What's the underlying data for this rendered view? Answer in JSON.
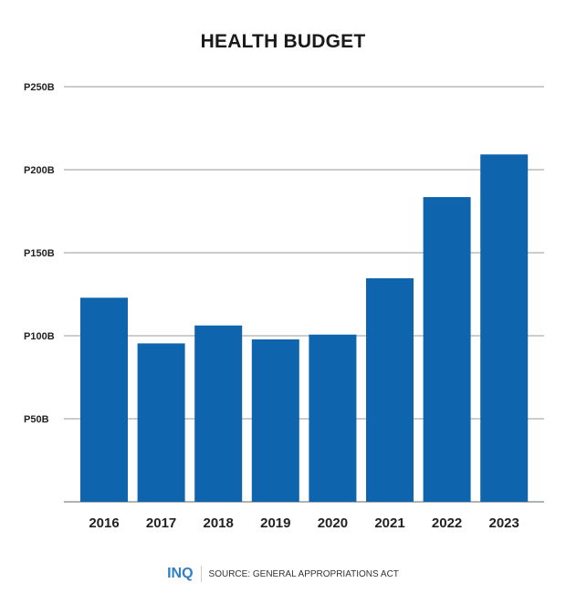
{
  "chart_data": {
    "type": "bar",
    "title": "HEALTH BUDGET",
    "categories": [
      "2016",
      "2017",
      "2018",
      "2019",
      "2020",
      "2021",
      "2022",
      "2023"
    ],
    "values": [
      122.9,
      95.4,
      106.2,
      97.8,
      100.7,
      134.6,
      183.5,
      209.2
    ],
    "unit": "billion pesos",
    "ylim": [
      0,
      250
    ],
    "yticks": [
      50,
      100,
      150,
      200,
      250
    ],
    "ytick_labels": [
      "P50B",
      "P100B",
      "P150B",
      "P200B",
      "P250B"
    ],
    "grid": true,
    "bar_color": "#0f64ae"
  },
  "footer": {
    "logo": "INQ",
    "source": "SOURCE: GENERAL APPROPRIATIONS ACT"
  }
}
